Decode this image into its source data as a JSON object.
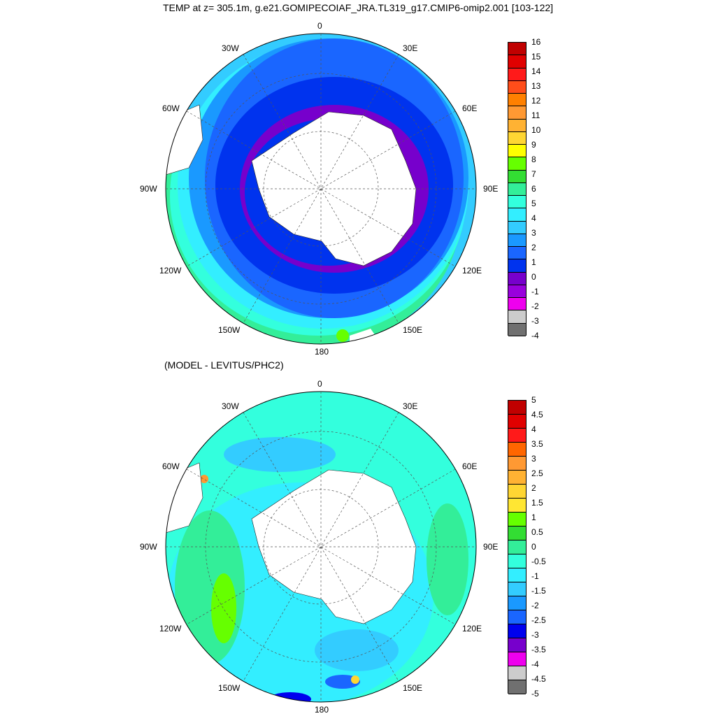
{
  "title": "TEMP at z= 305.1m, g.e21.GOMIPECOIAF_JRA.TL319_g17.CMIP6-omip2.001 [103-122]",
  "subtitle": "(MODEL - LEVITUS/PHC2)",
  "lon_labels": [
    "0",
    "30E",
    "60E",
    "90E",
    "120E",
    "150E",
    "180",
    "150W",
    "120W",
    "90W",
    "60W",
    "30W"
  ],
  "colorbar1": {
    "labels": [
      "16",
      "15",
      "14",
      "13",
      "12",
      "11",
      "10",
      "9",
      "8",
      "7",
      "6",
      "5",
      "4",
      "3",
      "2",
      "1",
      "0",
      "-1",
      "-2",
      "-3",
      "-4"
    ],
    "colors": [
      "#c00000",
      "#e00000",
      "#ff1a1a",
      "#ff4d1a",
      "#ff8000",
      "#ff9933",
      "#ffb233",
      "#ffd633",
      "#ffff00",
      "#66ff00",
      "#33dd33",
      "#33ee99",
      "#33ffdd",
      "#33eeff",
      "#33ccff",
      "#1a99ff",
      "#1a66ff",
      "#0033ee",
      "#7700cc",
      "#9900dd",
      "#ee00ee",
      "#cccccc",
      "#707070"
    ]
  },
  "colorbar2": {
    "labels": [
      "5",
      "4.5",
      "4",
      "3.5",
      "3",
      "2.5",
      "2",
      "1.5",
      "1",
      "0.5",
      "0",
      "-0.5",
      "-1",
      "-1.5",
      "-2",
      "-2.5",
      "-3",
      "-3.5",
      "-4",
      "-4.5",
      "-5"
    ],
    "colors": [
      "#c00000",
      "#e00000",
      "#ff1a1a",
      "#ff6600",
      "#ff9933",
      "#ffb233",
      "#ffd633",
      "#ffe633",
      "#66ff00",
      "#33dd33",
      "#33ee99",
      "#33ffdd",
      "#33eeff",
      "#33ccff",
      "#1a99ff",
      "#1a66ff",
      "#0000ee",
      "#7700cc",
      "#ee00ee",
      "#cccccc",
      "#707070"
    ]
  },
  "map_colors": {
    "land": "#ffffff",
    "deep_blue": "#0033ee",
    "mid_blue": "#1a66ff",
    "light_blue": "#1a99ff",
    "cyan": "#33ccff",
    "teal": "#33eeff",
    "aqua": "#33ffdd",
    "green": "#33ee99",
    "lime": "#66ff00",
    "yellow": "#ffd633",
    "purple": "#7700cc",
    "magenta": "#ee00ee"
  }
}
